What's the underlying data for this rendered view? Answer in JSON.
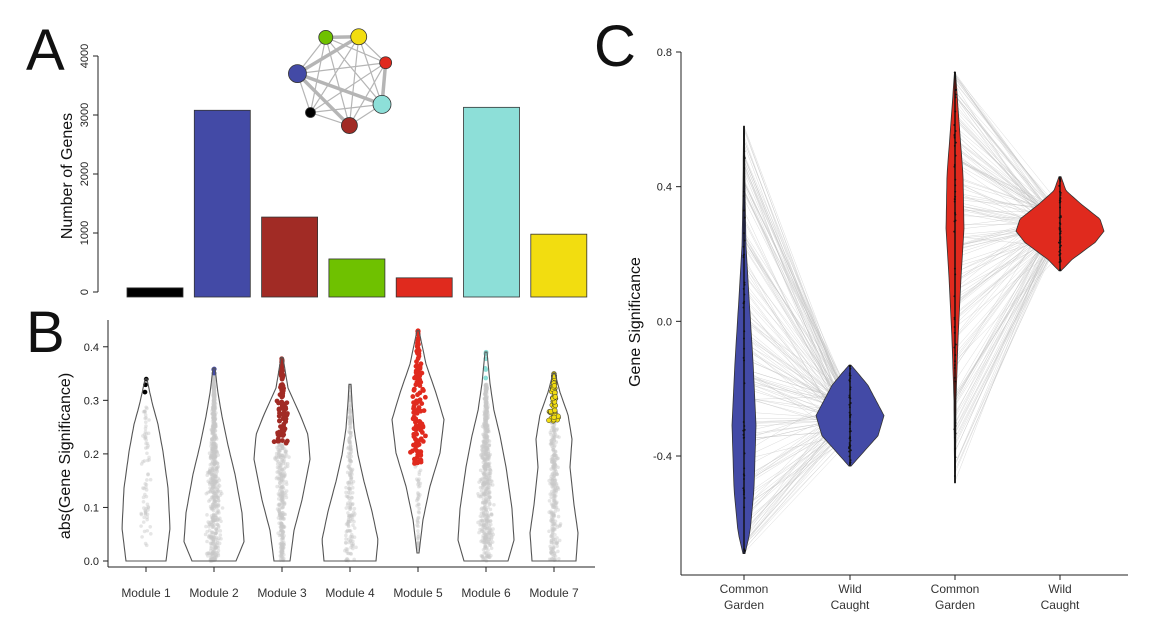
{
  "colors": {
    "black": "#000000",
    "blue": "#434aa6",
    "brown": "#a12b25",
    "green": "#6fc100",
    "red": "#e02a1e",
    "cyan": "#8ddfd8",
    "yellow": "#f2dd10",
    "grey_points": "#c8c8c8",
    "link": "#b5b5b5"
  },
  "panel_letters": [
    "A",
    "B",
    "C"
  ],
  "chart_data": [
    {
      "panel": "A",
      "type": "bar",
      "ylabel": "Number of Genes",
      "ylim": [
        0,
        4000
      ],
      "yticks": [
        "0",
        "1000",
        "2000",
        "3000",
        "4000"
      ],
      "categories": [
        "Module 1",
        "Module 2",
        "Module 3",
        "Module 4",
        "Module 5",
        "Module 6",
        "Module 7"
      ],
      "values": [
        70,
        3080,
        1270,
        560,
        240,
        3130,
        980
      ],
      "bar_colors": [
        "#000000",
        "#434aa6",
        "#a12b25",
        "#6fc100",
        "#e02a1e",
        "#8ddfd8",
        "#f2dd10"
      ],
      "network_inset": {
        "node_colors": [
          "#6fc100",
          "#f2dd10",
          "#e02a1e",
          "#8ddfd8",
          "#a12b25",
          "#000000",
          "#434aa6"
        ],
        "edges_strong": [
          [
            6,
            3
          ],
          [
            6,
            1
          ],
          [
            0,
            1
          ],
          [
            3,
            2
          ],
          [
            6,
            4
          ]
        ]
      }
    },
    {
      "panel": "B",
      "type": "violin",
      "ylabel": "abs(Gene Significance)",
      "ylim": [
        0,
        0.45
      ],
      "yticks": [
        "0.0",
        "0.1",
        "0.2",
        "0.3",
        "0.4"
      ],
      "categories": [
        "Module 1",
        "Module 2",
        "Module 3",
        "Module 4",
        "Module 5",
        "Module 6",
        "Module 7"
      ],
      "series": [
        {
          "min": 0.0,
          "max": 0.34,
          "highlight_min": 0.29,
          "highlight_color": "#000000"
        },
        {
          "min": 0.0,
          "max": 0.36,
          "highlight_min": 0.35,
          "highlight_color": "#434aa6"
        },
        {
          "min": 0.0,
          "max": 0.38,
          "highlight_min": 0.22,
          "highlight_color": "#a12b25"
        },
        {
          "min": 0.0,
          "max": 0.33,
          "highlight_min": null,
          "highlight_color": "#6fc100"
        },
        {
          "min": 0.015,
          "max": 0.43,
          "highlight_min": 0.18,
          "highlight_color": "#e02a1e"
        },
        {
          "min": 0.0,
          "max": 0.39,
          "highlight_min": 0.33,
          "highlight_color": "#8ddfd8"
        },
        {
          "min": 0.0,
          "max": 0.35,
          "highlight_min": 0.26,
          "highlight_color": "#f2dd10"
        }
      ]
    },
    {
      "panel": "C",
      "type": "violin",
      "ylabel": "Gene Significance",
      "ylim": [
        -0.75,
        0.8
      ],
      "yticks": [
        "-0.4",
        "0.0",
        "0.4",
        "0.8"
      ],
      "ytick_values": [
        -0.4,
        0.0,
        0.4,
        0.8
      ],
      "categories": [
        "Common Garden",
        "Wild Caught",
        "Common Garden",
        "Wild Caught"
      ],
      "series": [
        {
          "group": "blue",
          "condition": "Common Garden",
          "min": -0.69,
          "max": 0.58,
          "color": "#434aa6"
        },
        {
          "group": "blue",
          "condition": "Wild Caught",
          "min": -0.43,
          "max": -0.13,
          "color": "#434aa6"
        },
        {
          "group": "red",
          "condition": "Common Garden",
          "min": -0.48,
          "max": 0.74,
          "color": "#e02a1e"
        },
        {
          "group": "red",
          "condition": "Wild Caught",
          "min": 0.15,
          "max": 0.43,
          "color": "#e02a1e"
        }
      ]
    }
  ]
}
